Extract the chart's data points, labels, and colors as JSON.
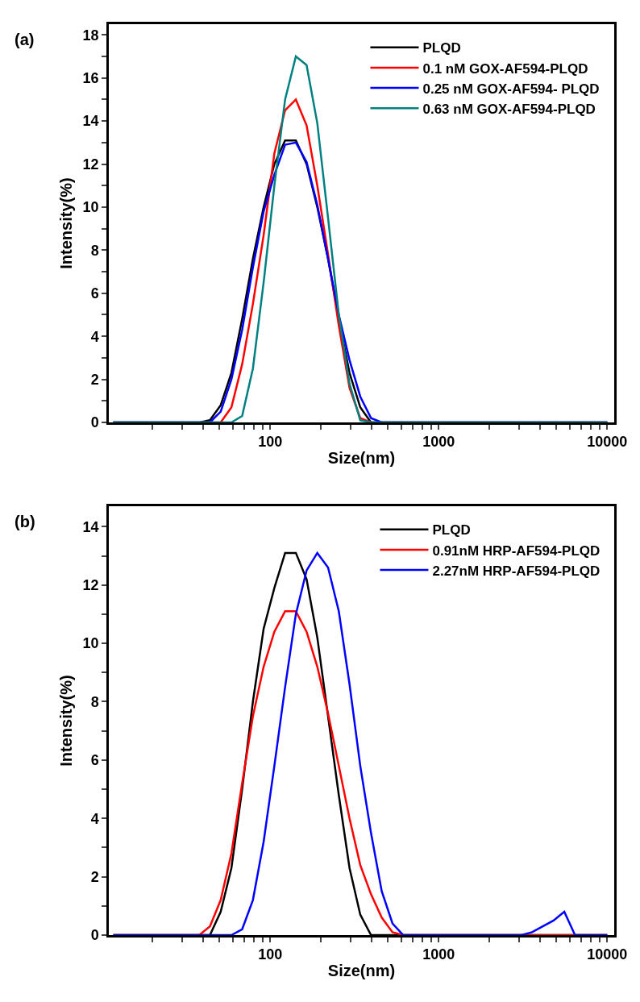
{
  "chart_data": [
    {
      "type": "line",
      "title": "(a)",
      "xlabel": "Size(nm)",
      "ylabel": "Intensity(%)",
      "log": "x",
      "legend": "top right",
      "marker": "none",
      "line_style": "solid",
      "xlim": [
        11,
        11000
      ],
      "ylim": [
        0,
        18.5
      ],
      "xticks": [
        {
          "value": 20,
          "label": null
        },
        {
          "value": 30,
          "label": null
        },
        {
          "value": 40,
          "label": null
        },
        {
          "value": 50,
          "label": null
        },
        {
          "value": 60,
          "label": null
        },
        {
          "value": 70,
          "label": null
        },
        {
          "value": 80,
          "label": null
        },
        {
          "value": 90,
          "label": null
        },
        100,
        {
          "value": 200,
          "label": null
        },
        {
          "value": 300,
          "label": null
        },
        {
          "value": 400,
          "label": null
        },
        {
          "value": 500,
          "label": null
        },
        {
          "value": 600,
          "label": null
        },
        {
          "value": 700,
          "label": null
        },
        {
          "value": 800,
          "label": null
        },
        {
          "value": 900,
          "label": null
        },
        1000,
        {
          "value": 2000,
          "label": null
        },
        {
          "value": 3000,
          "label": null
        },
        {
          "value": 4000,
          "label": null
        },
        {
          "value": 5000,
          "label": null
        },
        {
          "value": 6000,
          "label": null
        },
        {
          "value": 7000,
          "label": null
        },
        {
          "value": 8000,
          "label": null
        },
        {
          "value": 9000,
          "label": null
        },
        10000
      ],
      "yticks": [
        0,
        {
          "value": 1,
          "label": null
        },
        2,
        {
          "value": 3,
          "label": null
        },
        4,
        {
          "value": 5,
          "label": null
        },
        6,
        {
          "value": 7,
          "label": null
        },
        8,
        {
          "value": 9,
          "label": null
        },
        10,
        {
          "value": 11,
          "label": null
        },
        12,
        {
          "value": 13,
          "label": null
        },
        14,
        {
          "value": 15,
          "label": null
        },
        16,
        {
          "value": 17,
          "label": null
        },
        18
      ],
      "series": [
        {
          "name": "PLQD",
          "color": "#000000",
          "x": [
            11.7,
            37.84,
            43.82,
            50.75,
            58.77,
            68.06,
            78.82,
            91.28,
            105.7,
            122.4,
            141.8,
            164.2,
            190.1,
            220.2,
            255.0,
            295.3,
            342.0,
            396.1,
            10000
          ],
          "values": [
            0,
            0,
            0.1,
            0.8,
            2.3,
            4.8,
            7.6,
            10.0,
            12.0,
            13.1,
            13.1,
            12.0,
            10.0,
            7.6,
            4.8,
            2.3,
            0.7,
            0,
            0
          ]
        },
        {
          "name": "0.1 nM GOX-AF594-PLQD",
          "color": "#ff0000",
          "x": [
            11.7,
            50.75,
            58.77,
            68.06,
            78.82,
            91.28,
            105.7,
            122.4,
            141.8,
            164.2,
            190.1,
            220.2,
            255.0,
            295.3,
            342.0,
            396.1,
            10000
          ],
          "values": [
            0,
            0,
            0.7,
            2.7,
            5.5,
            8.7,
            12.5,
            14.5,
            15.0,
            13.8,
            11.0,
            7.8,
            4.5,
            1.6,
            0.2,
            0,
            0
          ]
        },
        {
          "name": "0.25 nM GOX-AF594- PLQD",
          "color": "#0000ff",
          "x": [
            11.7,
            43.82,
            50.75,
            58.77,
            68.06,
            78.82,
            91.28,
            105.7,
            122.4,
            141.8,
            164.2,
            190.1,
            220.2,
            255.0,
            295.3,
            342.0,
            396.1,
            458.7,
            10000
          ],
          "values": [
            0,
            0,
            0.5,
            2.0,
            4.3,
            7.2,
            9.8,
            11.5,
            12.9,
            13.0,
            12.1,
            10.1,
            7.6,
            5.0,
            2.9,
            1.2,
            0.2,
            0,
            0
          ]
        },
        {
          "name": "0.63 nM GOX-AF594-PLQD",
          "color": "#008080",
          "x": [
            11.7,
            58.77,
            68.06,
            78.82,
            91.28,
            105.7,
            122.4,
            141.8,
            164.2,
            190.1,
            220.2,
            255.0,
            295.3,
            342.0,
            396.1,
            10000
          ],
          "values": [
            0,
            0,
            0.3,
            2.5,
            6.5,
            11.0,
            15.0,
            17.0,
            16.6,
            13.9,
            9.5,
            5.0,
            1.8,
            0.1,
            0,
            0
          ]
        }
      ]
    },
    {
      "type": "line",
      "title": "(b)",
      "xlabel": "Size(nm)",
      "ylabel": "Intensity(%)",
      "log": "x",
      "legend": "top right",
      "marker": "none",
      "line_style": "solid",
      "xlim": [
        11,
        11000
      ],
      "ylim": [
        0,
        14.7
      ],
      "xticks": [
        {
          "value": 20,
          "label": null
        },
        {
          "value": 30,
          "label": null
        },
        {
          "value": 40,
          "label": null
        },
        {
          "value": 50,
          "label": null
        },
        {
          "value": 60,
          "label": null
        },
        {
          "value": 70,
          "label": null
        },
        {
          "value": 80,
          "label": null
        },
        {
          "value": 90,
          "label": null
        },
        100,
        {
          "value": 200,
          "label": null
        },
        {
          "value": 300,
          "label": null
        },
        {
          "value": 400,
          "label": null
        },
        {
          "value": 500,
          "label": null
        },
        {
          "value": 600,
          "label": null
        },
        {
          "value": 700,
          "label": null
        },
        {
          "value": 800,
          "label": null
        },
        {
          "value": 900,
          "label": null
        },
        1000,
        {
          "value": 2000,
          "label": null
        },
        {
          "value": 3000,
          "label": null
        },
        {
          "value": 4000,
          "label": null
        },
        {
          "value": 5000,
          "label": null
        },
        {
          "value": 6000,
          "label": null
        },
        {
          "value": 7000,
          "label": null
        },
        {
          "value": 8000,
          "label": null
        },
        {
          "value": 9000,
          "label": null
        },
        10000
      ],
      "yticks": [
        0,
        {
          "value": 1,
          "label": null
        },
        2,
        {
          "value": 3,
          "label": null
        },
        4,
        {
          "value": 5,
          "label": null
        },
        6,
        {
          "value": 7,
          "label": null
        },
        8,
        {
          "value": 9,
          "label": null
        },
        10,
        {
          "value": 11,
          "label": null
        },
        12,
        {
          "value": 13,
          "label": null
        },
        14
      ],
      "series": [
        {
          "name": "PLQD",
          "color": "#000000",
          "x": [
            11.7,
            43.82,
            50.75,
            58.77,
            68.06,
            78.82,
            91.28,
            105.7,
            122.4,
            141.8,
            164.2,
            190.1,
            220.2,
            255.0,
            295.3,
            342.0,
            396.1,
            10000
          ],
          "values": [
            0,
            0,
            0.8,
            2.3,
            5.0,
            8.0,
            10.5,
            11.9,
            13.1,
            13.1,
            12.2,
            10.2,
            7.5,
            4.8,
            2.3,
            0.7,
            0,
            0
          ]
        },
        {
          "name": "0.91nM HRP-AF594-PLQD",
          "color": "#ff0000",
          "x": [
            11.7,
            37.84,
            43.82,
            50.75,
            58.77,
            68.06,
            78.82,
            91.28,
            105.7,
            122.4,
            141.8,
            164.2,
            190.1,
            220.2,
            255.0,
            295.3,
            342.0,
            396.1,
            458.7,
            531.2,
            615.1,
            10000
          ],
          "values": [
            0,
            0,
            0.3,
            1.2,
            2.8,
            5.2,
            7.5,
            9.2,
            10.4,
            11.1,
            11.1,
            10.4,
            9.2,
            7.6,
            5.8,
            4.0,
            2.4,
            1.4,
            0.6,
            0.1,
            0,
            0
          ]
        },
        {
          "name": "2.27nM HRP-AF594-PLQD",
          "color": "#0000ff",
          "x": [
            11.7,
            58.77,
            68.06,
            78.82,
            91.28,
            105.7,
            122.4,
            141.8,
            164.2,
            190.1,
            220.2,
            255.0,
            295.3,
            342.0,
            396.1,
            458.7,
            531.2,
            615.1,
            3091,
            3580,
            4145,
            4801,
            5560,
            6439,
            10000
          ],
          "values": [
            0,
            0,
            0.2,
            1.2,
            3.2,
            5.8,
            8.5,
            11.0,
            12.5,
            13.1,
            12.6,
            11.1,
            8.6,
            5.8,
            3.5,
            1.5,
            0.4,
            0,
            0,
            0.1,
            0.3,
            0.5,
            0.8,
            0,
            0
          ]
        }
      ]
    }
  ]
}
